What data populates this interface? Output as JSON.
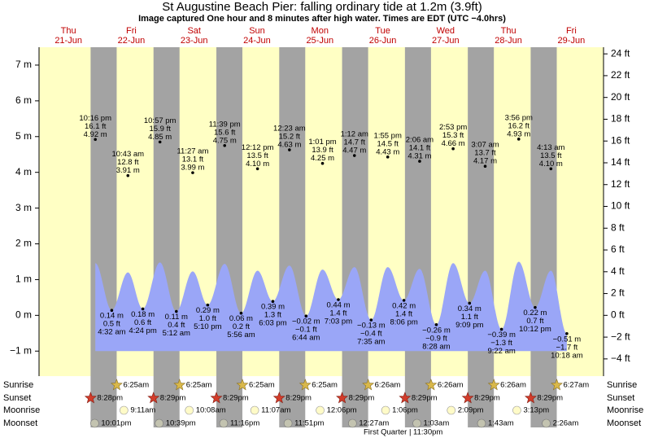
{
  "chart_data": {
    "type": "tide",
    "title": "St Augustine Beach Pier: falling  ordinary tide at 1.2m (3.9ft)",
    "subtitle": "Image captured One hour and 8 minutes after high water. Times are EDT (UTC −4.0hrs)",
    "ylim": [
      -1.7,
      7.5
    ],
    "yticks": [
      {
        "value": -1,
        "label": "−1 m"
      },
      {
        "value": 0,
        "label": "0 m"
      },
      {
        "value": 1,
        "label": "1 m"
      },
      {
        "value": 2,
        "label": "2 m"
      },
      {
        "value": 3,
        "label": "3 m"
      },
      {
        "value": 4,
        "label": "4 m"
      },
      {
        "value": 5,
        "label": "5 m"
      },
      {
        "value": 6,
        "label": "6 m"
      },
      {
        "value": 7,
        "label": "7 m"
      }
    ],
    "y2lim": [
      -5.58,
      24.61
    ],
    "y2ticks": [
      {
        "value": -4,
        "label": "−4 ft"
      },
      {
        "value": -2,
        "label": "−2 ft"
      },
      {
        "value": 0,
        "label": "0 ft"
      },
      {
        "value": 2,
        "label": "2 ft"
      },
      {
        "value": 4,
        "label": "4 ft"
      },
      {
        "value": 6,
        "label": "6 ft"
      },
      {
        "value": 8,
        "label": "8 ft"
      },
      {
        "value": 10,
        "label": "10 ft"
      },
      {
        "value": 12,
        "label": "12 ft"
      },
      {
        "value": 14,
        "label": "14 ft"
      },
      {
        "value": 16,
        "label": "16 ft"
      },
      {
        "value": 18,
        "label": "18 ft"
      },
      {
        "value": 20,
        "label": "20 ft"
      },
      {
        "value": 22,
        "label": "22 ft"
      },
      {
        "value": 24,
        "label": "24 ft"
      }
    ],
    "day_color": "#ffffc4",
    "night_color": "#a3a3a3",
    "curve": {
      "color": "#9aa6f7",
      "values": [
        1.46,
        0.14,
        1.2,
        0.18,
        1.48,
        0.11,
        1.23,
        0.29,
        1.44,
        0.06,
        1.25,
        0.39,
        1.39,
        -0.02,
        1.28,
        0.44,
        1.35,
        -0.13,
        1.35,
        0.42,
        1.3,
        -0.26,
        1.46,
        0.34,
        1.25,
        -0.39,
        1.5,
        0.22,
        1.25,
        -0.51
      ]
    },
    "rows": [
      "Sunrise",
      "Sunset",
      "Moonrise",
      "Moonset"
    ],
    "moon_phase": "First Quarter | 11:30pm",
    "days": [
      {
        "name": "Thu",
        "date": "21-Jun",
        "sunset": "8:28pm",
        "moonset": "10:01pm",
        "tides": [
          {
            "time": "10:16 pm",
            "ft": 16.1,
            "ft_label": "16.1 ft",
            "m": 4.92,
            "m_label": "4.92 m"
          }
        ]
      },
      {
        "name": "Fri",
        "date": "22-Jun",
        "sunrise": "6:25am",
        "sunset": "8:29pm",
        "moonrise": "9:11am",
        "moonset": "10:39pm",
        "tides": [
          {
            "time": "4:32 am",
            "ft": 0.5,
            "ft_label": "0.5 ft",
            "m": 0.14,
            "m_label": "0.14 m"
          },
          {
            "time": "10:43 am",
            "ft": 12.8,
            "ft_label": "12.8 ft",
            "m": 3.91,
            "m_label": "3.91 m"
          },
          {
            "time": "4:24 pm",
            "ft": 0.6,
            "ft_label": "0.6 ft",
            "m": 0.18,
            "m_label": "0.18 m"
          },
          {
            "time": "10:57 pm",
            "ft": 15.9,
            "ft_label": "15.9 ft",
            "m": 4.85,
            "m_label": "4.85 m"
          }
        ]
      },
      {
        "name": "Sat",
        "date": "23-Jun",
        "sunrise": "6:25am",
        "sunset": "8:29pm",
        "moonrise": "10:08am",
        "moonset": "11:16pm",
        "tides": [
          {
            "time": "5:12 am",
            "ft": 0.4,
            "ft_label": "0.4 ft",
            "m": 0.11,
            "m_label": "0.11 m"
          },
          {
            "time": "11:27 am",
            "ft": 13.1,
            "ft_label": "13.1 ft",
            "m": 3.99,
            "m_label": "3.99 m"
          },
          {
            "time": "5:10 pm",
            "ft": 1.0,
            "ft_label": "1.0 ft",
            "m": 0.29,
            "m_label": "0.29 m"
          },
          {
            "time": "11:39 pm",
            "ft": 15.6,
            "ft_label": "15.6 ft",
            "m": 4.75,
            "m_label": "4.75 m"
          }
        ]
      },
      {
        "name": "Sun",
        "date": "24-Jun",
        "sunrise": "6:25am",
        "sunset": "8:29pm",
        "moonrise": "11:07am",
        "moonset": "11:51pm",
        "tides": [
          {
            "time": "5:56 am",
            "ft": 0.2,
            "ft_label": "0.2 ft",
            "m": 0.06,
            "m_label": "0.06 m"
          },
          {
            "time": "12:12 pm",
            "ft": 13.5,
            "ft_label": "13.5 ft",
            "m": 4.1,
            "m_label": "4.10 m"
          },
          {
            "time": "6:03 pm",
            "ft": 1.3,
            "ft_label": "1.3 ft",
            "m": 0.39,
            "m_label": "0.39 m"
          }
        ]
      },
      {
        "name": "Mon",
        "date": "25-Jun",
        "sunrise": "6:25am",
        "sunset": "8:29pm",
        "moonrise": "12:06pm",
        "tides": [
          {
            "time": "12:23 am",
            "ft": 15.2,
            "ft_label": "15.2 ft",
            "m": 4.63,
            "m_label": "4.63 m"
          },
          {
            "time": "6:44 am",
            "ft": -0.1,
            "ft_label": "−0.1 ft",
            "m": -0.02,
            "m_label": "−0.02 m"
          },
          {
            "time": "1:01 pm",
            "ft": 13.9,
            "ft_label": "13.9 ft",
            "m": 4.25,
            "m_label": "4.25 m"
          },
          {
            "time": "7:03 pm",
            "ft": 1.4,
            "ft_label": "1.4 ft",
            "m": 0.44,
            "m_label": "0.44 m"
          }
        ]
      },
      {
        "name": "Tue",
        "date": "26-Jun",
        "sunrise": "6:26am",
        "sunset": "8:29pm",
        "moonrise": "1:06pm",
        "moonset": "12:27am",
        "tides": [
          {
            "time": "1:12 am",
            "ft": 14.7,
            "ft_label": "14.7 ft",
            "m": 4.47,
            "m_label": "4.47 m"
          },
          {
            "time": "7:35 am",
            "ft": -0.4,
            "ft_label": "−0.4 ft",
            "m": -0.13,
            "m_label": "−0.13 m"
          },
          {
            "time": "1:55 pm",
            "ft": 14.5,
            "ft_label": "14.5 ft",
            "m": 4.43,
            "m_label": "4.43 m"
          },
          {
            "time": "8:06 pm",
            "ft": 1.4,
            "ft_label": "1.4 ft",
            "m": 0.42,
            "m_label": "0.42 m"
          }
        ]
      },
      {
        "name": "Wed",
        "date": "27-Jun",
        "sunrise": "6:26am",
        "sunset": "8:29pm",
        "moonrise": "2:09pm",
        "moonset": "1:03am",
        "tides": [
          {
            "time": "2:06 am",
            "ft": 14.1,
            "ft_label": "14.1 ft",
            "m": 4.31,
            "m_label": "4.31 m"
          },
          {
            "time": "8:28 am",
            "ft": -0.9,
            "ft_label": "−0.9 ft",
            "m": -0.26,
            "m_label": "−0.26 m"
          },
          {
            "time": "2:53 pm",
            "ft": 15.3,
            "ft_label": "15.3 ft",
            "m": 4.66,
            "m_label": "4.66 m"
          },
          {
            "time": "9:09 pm",
            "ft": 1.1,
            "ft_label": "1.1 ft",
            "m": 0.34,
            "m_label": "0.34 m"
          }
        ]
      },
      {
        "name": "Thu",
        "date": "28-Jun",
        "sunrise": "6:26am",
        "sunset": "8:29pm",
        "moonrise": "3:13pm",
        "moonset": "1:43am",
        "tides": [
          {
            "time": "3:07 am",
            "ft": 13.7,
            "ft_label": "13.7 ft",
            "m": 4.17,
            "m_label": "4.17 m"
          },
          {
            "time": "9:22 am",
            "ft": -1.3,
            "ft_label": "−1.3 ft",
            "m": -0.39,
            "m_label": "−0.39 m"
          },
          {
            "time": "3:56 pm",
            "ft": 16.2,
            "ft_label": "16.2 ft",
            "m": 4.93,
            "m_label": "4.93 m"
          },
          {
            "time": "10:12 pm",
            "ft": 0.7,
            "ft_label": "0.7 ft",
            "m": 0.22,
            "m_label": "0.22 m"
          }
        ]
      },
      {
        "name": "Fri",
        "date": "29-Jun",
        "sunrise": "6:27am",
        "moonset": "2:26am",
        "tides": [
          {
            "time": "4:13 am",
            "ft": 13.5,
            "ft_label": "13.5 ft",
            "m": 4.1,
            "m_label": "4.10 m"
          },
          {
            "time": "10:18 am",
            "ft": -1.7,
            "ft_label": "−1.7 ft",
            "m": -0.51,
            "m_label": "−0.51 m"
          }
        ]
      }
    ]
  }
}
